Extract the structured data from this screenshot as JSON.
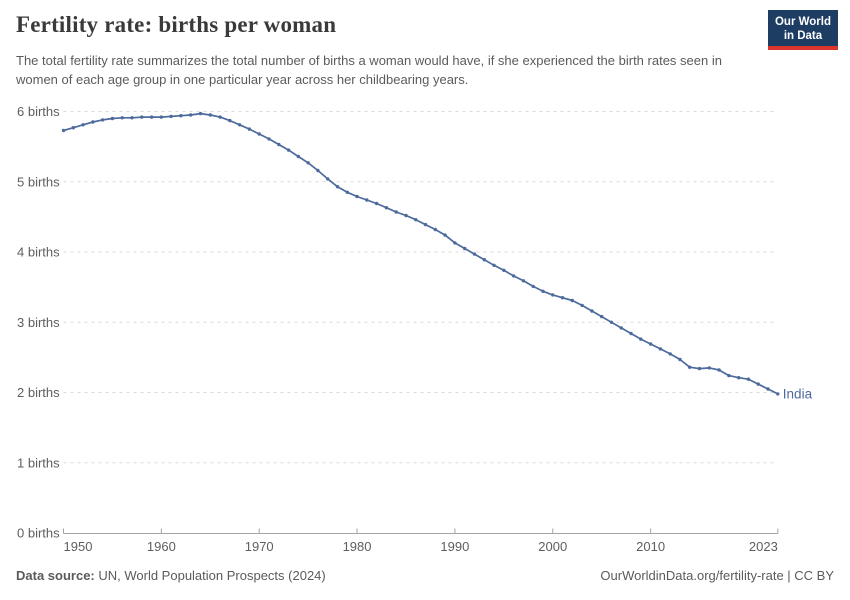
{
  "header": {
    "title": "Fertility rate: births per woman",
    "subtitle": "The total fertility rate summarizes the total number of births a woman would have, if she experienced the birth rates seen in women of each age group in one particular year across her childbearing years."
  },
  "logo": {
    "line1": "Our World",
    "line2": "in Data",
    "bg_color": "#1d3d63",
    "stripe_color": "#dc352c"
  },
  "chart_data": {
    "type": "line",
    "title": "Fertility rate: births per woman",
    "xlabel": "",
    "ylabel": "births",
    "ylim": [
      0,
      6
    ],
    "x_range": [
      1950,
      2023
    ],
    "x_ticks": [
      1950,
      1960,
      1970,
      1980,
      1990,
      2000,
      2010,
      2023
    ],
    "y_ticks": [
      0,
      1,
      2,
      3,
      4,
      5,
      6
    ],
    "y_tick_labels": [
      "0 births",
      "1 births",
      "2 births",
      "3 births",
      "4 births",
      "5 births",
      "6 births"
    ],
    "grid": "horizontal-dashed",
    "legend_position": "end-of-line-label",
    "end_label": "India",
    "x": [
      1950,
      1951,
      1952,
      1953,
      1954,
      1955,
      1956,
      1957,
      1958,
      1959,
      1960,
      1961,
      1962,
      1963,
      1964,
      1965,
      1966,
      1967,
      1968,
      1969,
      1970,
      1971,
      1972,
      1973,
      1974,
      1975,
      1976,
      1977,
      1978,
      1979,
      1980,
      1981,
      1982,
      1983,
      1984,
      1985,
      1986,
      1987,
      1988,
      1989,
      1990,
      1991,
      1992,
      1993,
      1994,
      1995,
      1996,
      1997,
      1998,
      1999,
      2000,
      2001,
      2002,
      2003,
      2004,
      2005,
      2006,
      2007,
      2008,
      2009,
      2010,
      2011,
      2012,
      2013,
      2014,
      2015,
      2016,
      2017,
      2018,
      2019,
      2020,
      2021,
      2022,
      2023
    ],
    "series": [
      {
        "name": "India",
        "color": "#4c6a9c",
        "values": [
          5.73,
          5.77,
          5.81,
          5.85,
          5.88,
          5.9,
          5.91,
          5.91,
          5.92,
          5.92,
          5.92,
          5.93,
          5.94,
          5.95,
          5.97,
          5.95,
          5.92,
          5.87,
          5.81,
          5.75,
          5.68,
          5.61,
          5.53,
          5.45,
          5.36,
          5.27,
          5.16,
          5.04,
          4.93,
          4.85,
          4.79,
          4.74,
          4.69,
          4.63,
          4.57,
          4.52,
          4.46,
          4.39,
          4.32,
          4.24,
          4.13,
          4.05,
          3.97,
          3.89,
          3.81,
          3.74,
          3.66,
          3.59,
          3.51,
          3.44,
          3.39,
          3.35,
          3.31,
          3.24,
          3.16,
          3.08,
          3.0,
          2.92,
          2.84,
          2.76,
          2.69,
          2.62,
          2.55,
          2.47,
          2.36,
          2.34,
          2.35,
          2.32,
          2.24,
          2.21,
          2.19,
          2.12,
          2.05,
          1.98
        ]
      }
    ],
    "colors": {
      "line": "#4c6a9c",
      "grid": "#dadada",
      "axis": "#a5a5a5",
      "tick_text": "#5e5e5e",
      "end_label": "#4c6a9c"
    }
  },
  "footer": {
    "source_label": "Data source:",
    "source_text": " UN, World Population Prospects (2024)",
    "credit": "OurWorldinData.org/fertility-rate | CC BY"
  }
}
